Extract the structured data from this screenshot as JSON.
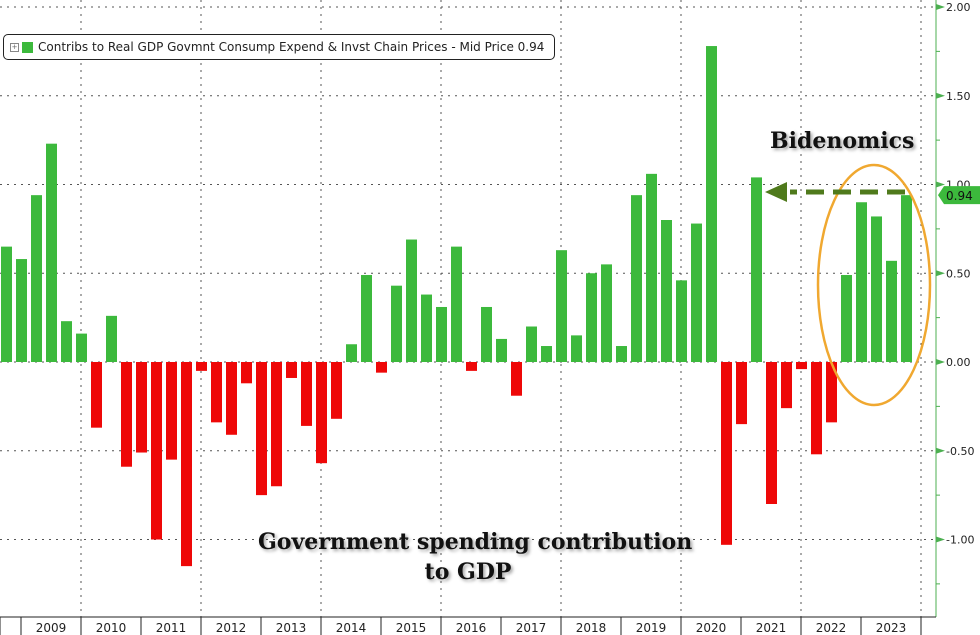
{
  "legend": {
    "expander_icon": "plus-box-icon",
    "label": "Contribs to Real GDP Govmnt Consump Expend & Invst Chain Prices - Mid Price 0.94"
  },
  "annotations": {
    "top_right": "Bidenomics",
    "bottom_line1": "Government spending contribution",
    "bottom_line2": "to GDP"
  },
  "last_value_tag": "0.94",
  "colors": {
    "positive": "#3cb93c",
    "negative": "#ee0808",
    "axis": "#4caf50",
    "ellipse": "#f0a830",
    "arrow": "#4f7a1c",
    "tag_bg": "#3cb93c"
  },
  "chart_data": {
    "type": "bar",
    "title": "Contribs to Real GDP Govmnt Consump Expend & Invst Chain Prices",
    "xlabel": "",
    "ylabel": "",
    "ylim": [
      -1.4,
      2.0
    ],
    "y_ticks": [
      2.0,
      1.5,
      1.0,
      0.5,
      0.0,
      -0.5,
      -1.0
    ],
    "y_tick_labels": [
      "2.00",
      "1.50",
      "1.00",
      "0.50",
      "0.00",
      "-0.50",
      "-1.00"
    ],
    "y_axis_side": "right",
    "grid": true,
    "legend_position": "top-left",
    "x_year_labels": [
      "2009",
      "2010",
      "2011",
      "2012",
      "2013",
      "2014",
      "2015",
      "2016",
      "2017",
      "2018",
      "2019",
      "2020",
      "2021",
      "2022",
      "2023"
    ],
    "frequency": "quarterly",
    "first_period": "2008 Q3",
    "last_period": "2023 Q3",
    "values": [
      0.65,
      0.58,
      0.94,
      1.23,
      0.23,
      0.16,
      -0.37,
      0.26,
      -0.59,
      -0.51,
      -1.0,
      -0.55,
      -1.15,
      -0.05,
      -0.34,
      -0.41,
      -0.12,
      -0.75,
      -0.7,
      -0.09,
      -0.36,
      -0.57,
      -0.32,
      0.1,
      0.49,
      -0.06,
      0.43,
      0.69,
      0.38,
      0.31,
      0.65,
      -0.05,
      0.31,
      0.13,
      -0.19,
      0.2,
      0.09,
      0.63,
      0.15,
      0.5,
      0.55,
      0.09,
      0.94,
      1.06,
      0.8,
      0.46,
      0.78,
      1.78,
      -1.03,
      -0.35,
      1.04,
      -0.8,
      -0.26,
      -0.04,
      -0.52,
      -0.34,
      0.49,
      0.9,
      0.82,
      0.57,
      0.94
    ],
    "last_value": 0.94,
    "annotations": [
      {
        "text": "Bidenomics",
        "type": "text"
      },
      {
        "text": "Government spending contribution to GDP",
        "type": "text"
      },
      {
        "type": "ellipse",
        "highlights": "2022 Q4 - 2023 Q3"
      },
      {
        "type": "dashed-arrow",
        "from_value": 0.94,
        "to": "2021 Q2 bar"
      }
    ]
  }
}
